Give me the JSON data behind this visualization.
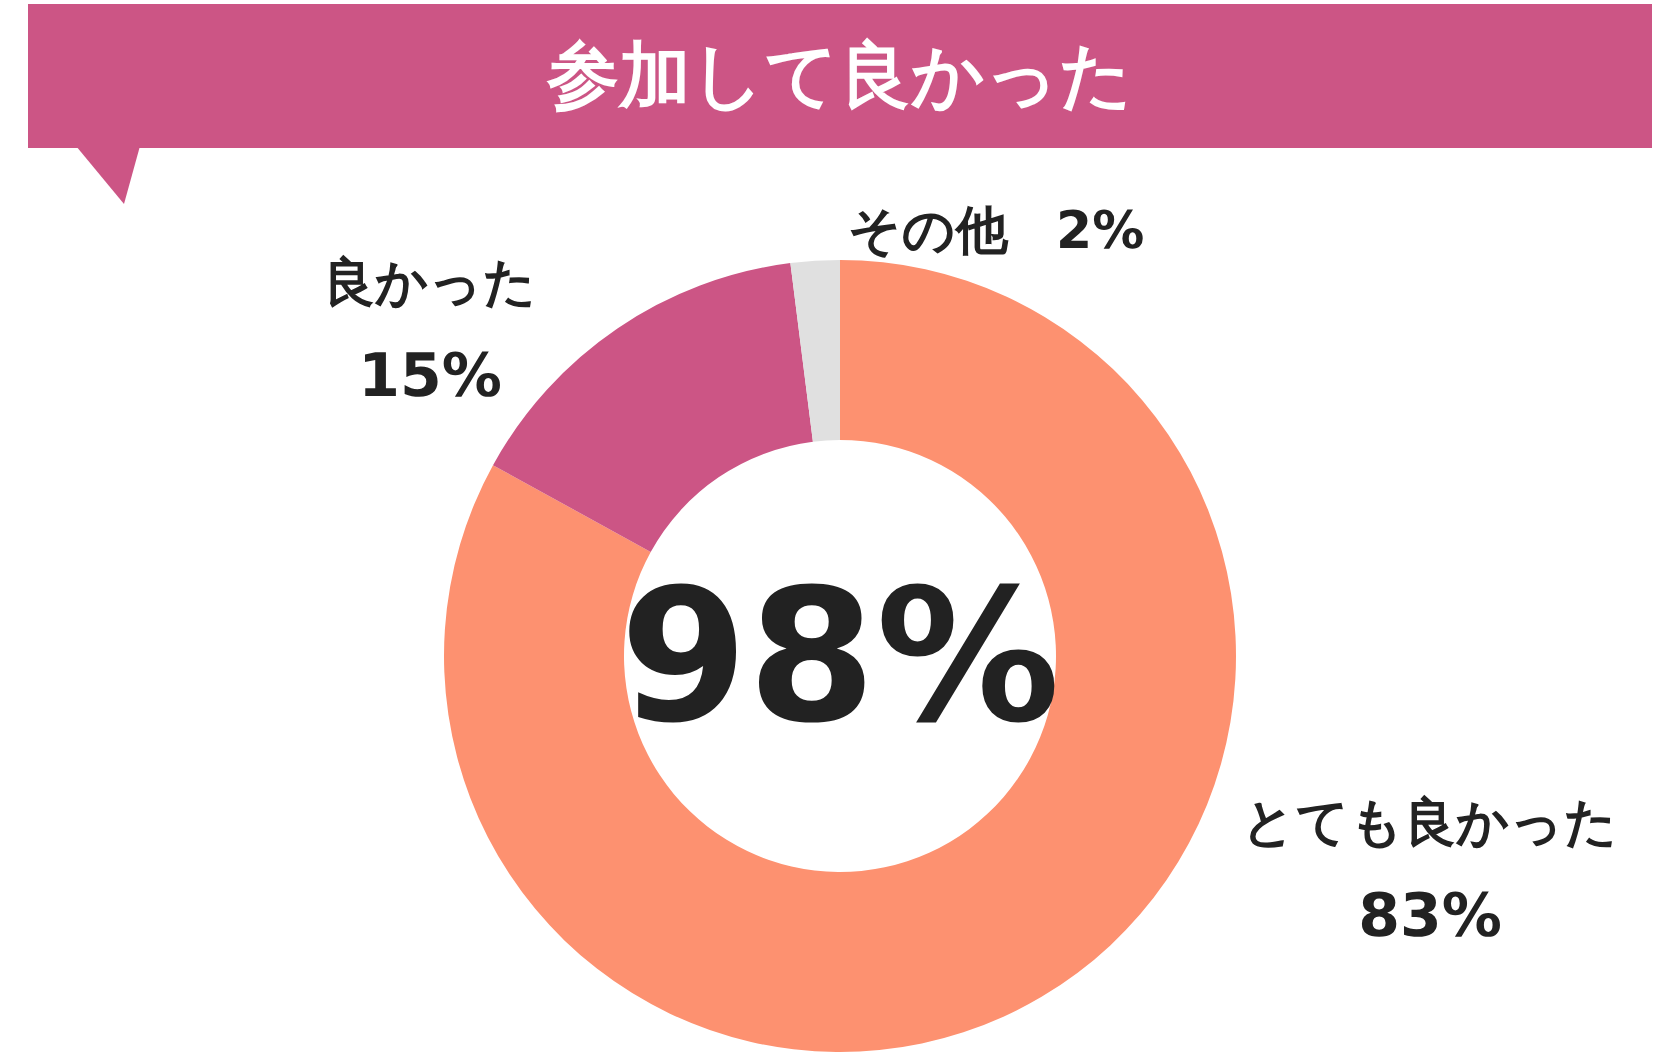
{
  "chart_data": {
    "type": "donut",
    "title": "参加して良かった",
    "categories": [
      "とても良かった",
      "良かった",
      "その他"
    ],
    "values": [
      83,
      15,
      2
    ],
    "colors": [
      "#fd9170",
      "#cc5585",
      "#e0e0e0"
    ],
    "value_labels": [
      "83%",
      "15%",
      "2%"
    ],
    "annotations": [
      "98%"
    ]
  }
}
